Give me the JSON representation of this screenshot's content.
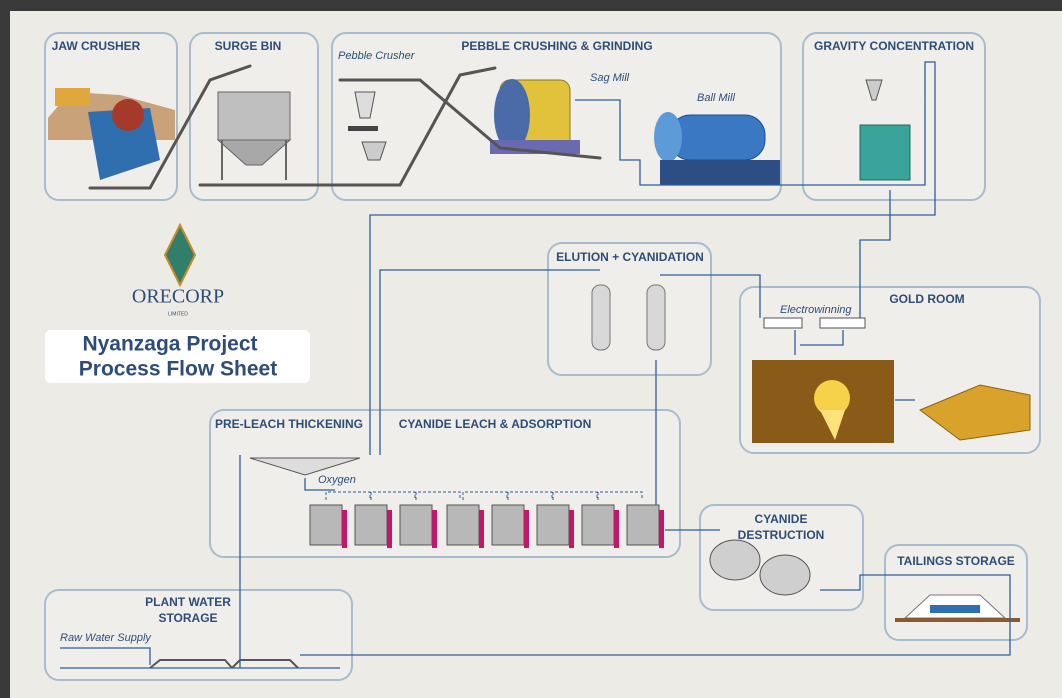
{
  "logo": {
    "name": "ORECORP",
    "sub": "LIMITED"
  },
  "title": [
    "Nyanzaga Project",
    "Process Flow Sheet"
  ],
  "stages": {
    "jaw_crusher": "JAW CRUSHER",
    "surge_bin": "SURGE BIN",
    "pebble": {
      "title": "PEBBLE CRUSHING & GRINDING",
      "labels": [
        "Pebble Crusher",
        "Sag Mill",
        "Ball Mill"
      ]
    },
    "gravity": "GRAVITY CONCENTRATION",
    "elution": "ELUTION + CYANIDATION",
    "gold_room": {
      "title": "GOLD ROOM",
      "labels": [
        "Electrowinning"
      ]
    },
    "pre_leach": "PRE-LEACH THICKENING",
    "leach": {
      "title": "CYANIDE LEACH & ADSORPTION",
      "labels": [
        "Oxygen"
      ]
    },
    "destruction": [
      "CYANIDE",
      "DESTRUCTION"
    ],
    "tailings": "TAILINGS STORAGE",
    "water": {
      "title": [
        "PLANT WATER",
        "STORAGE"
      ],
      "labels": [
        "Raw Water Supply"
      ]
    }
  }
}
